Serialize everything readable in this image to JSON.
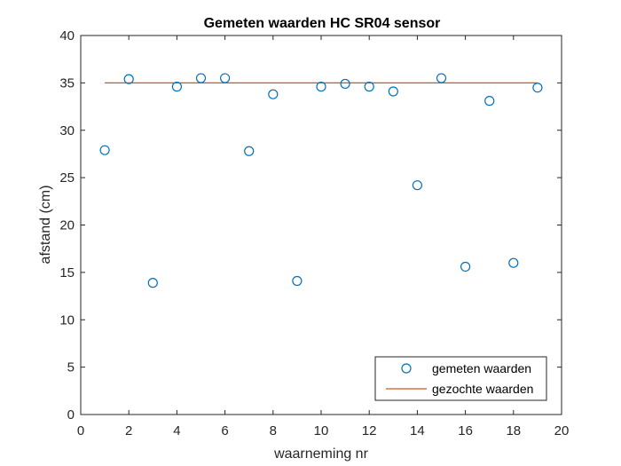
{
  "chart_data": {
    "type": "scatter",
    "title": "Gemeten waarden HC SR04 sensor",
    "xlabel": "waarneming nr",
    "ylabel": "afstand (cm)",
    "xlim": [
      0,
      20
    ],
    "ylim": [
      0,
      40
    ],
    "xticks": [
      0,
      2,
      4,
      6,
      8,
      10,
      12,
      14,
      16,
      18,
      20
    ],
    "yticks": [
      0,
      5,
      10,
      15,
      20,
      25,
      30,
      35,
      40
    ],
    "grid": false,
    "legend_position": "bottom-right",
    "series": [
      {
        "name": "gemeten waarden",
        "kind": "scatter",
        "marker": "circle",
        "color": "#0072BD",
        "x": [
          1,
          2,
          3,
          4,
          5,
          6,
          7,
          8,
          9,
          10,
          11,
          12,
          13,
          14,
          15,
          16,
          17,
          18,
          19
        ],
        "y": [
          27.9,
          35.4,
          13.9,
          34.6,
          35.5,
          35.5,
          27.8,
          33.8,
          14.1,
          34.6,
          34.9,
          34.6,
          34.1,
          24.2,
          35.5,
          15.6,
          33.1,
          16.0,
          34.5
        ]
      },
      {
        "name": "gezochte waarden",
        "kind": "line",
        "color": "#D95319",
        "x": [
          1,
          19
        ],
        "y": [
          35,
          35
        ]
      }
    ]
  }
}
